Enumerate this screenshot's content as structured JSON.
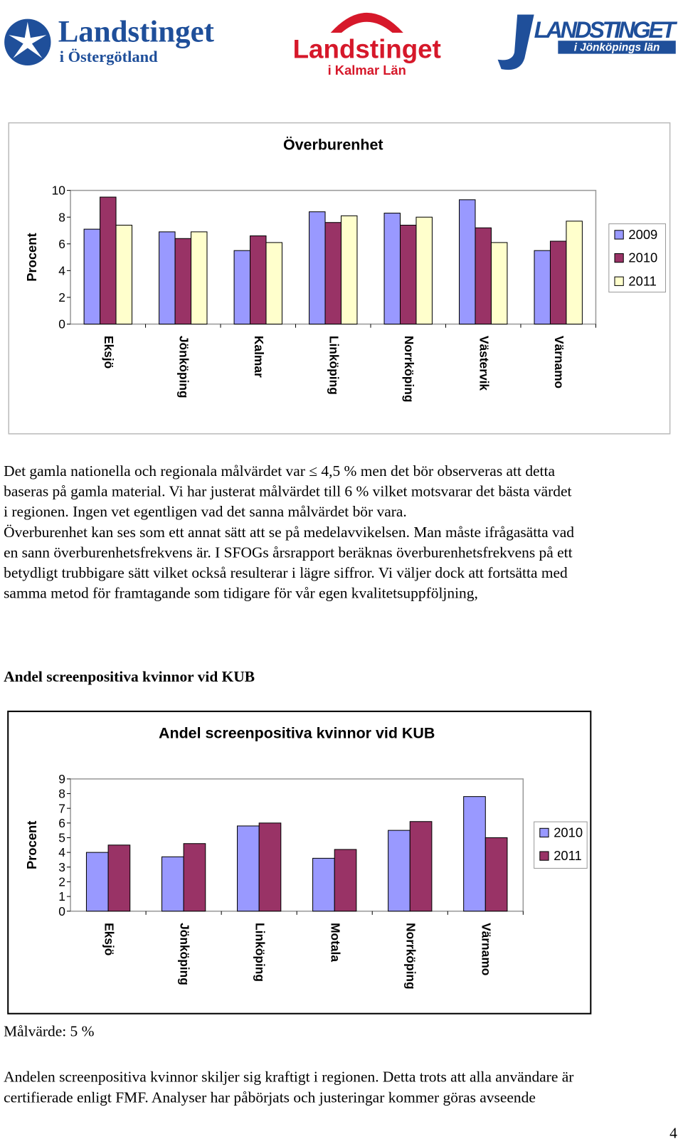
{
  "logos": [
    {
      "name": "Landstinget",
      "sub": "i Östergötland"
    },
    {
      "name": "Landstinget",
      "sub": "i Kalmar Län"
    },
    {
      "name": "LANDSTINGET",
      "sub": "i Jönköpings län"
    }
  ],
  "chart_data": [
    {
      "type": "bar",
      "title": "Överburenhet",
      "y_label": "Procent",
      "categories": [
        "Eksjö",
        "Jönköping",
        "Kalmar",
        "Linköping",
        "Norrköping",
        "Västervik",
        "Värnamo"
      ],
      "series": [
        {
          "name": "2009",
          "color": "#9999ff",
          "values": [
            7.1,
            6.9,
            5.5,
            8.4,
            8.3,
            9.3,
            5.5
          ]
        },
        {
          "name": "2010",
          "color": "#993366",
          "values": [
            9.5,
            6.4,
            6.6,
            7.6,
            7.4,
            7.2,
            6.2
          ]
        },
        {
          "name": "2011",
          "color": "#ffffcc",
          "values": [
            7.4,
            6.9,
            6.1,
            8.1,
            8.0,
            6.1,
            7.7
          ]
        }
      ],
      "ylim": [
        0,
        10
      ],
      "yticks": [
        0,
        2,
        4,
        6,
        8,
        10
      ],
      "grid": false,
      "legend": "right"
    },
    {
      "type": "bar",
      "title": "Andel screenpositiva kvinnor vid KUB",
      "y_label": "Procent",
      "categories": [
        "Eksjö",
        "Jönköping",
        "Linköping",
        "Motala",
        "Norrköping",
        "Värnamo"
      ],
      "series": [
        {
          "name": "2010",
          "color": "#9999ff",
          "values": [
            4.0,
            3.7,
            5.8,
            3.6,
            5.5,
            7.8
          ]
        },
        {
          "name": "2011",
          "color": "#993366",
          "values": [
            4.5,
            4.6,
            6.0,
            4.2,
            6.1,
            5.0
          ]
        }
      ],
      "ylim": [
        0,
        9
      ],
      "yticks": [
        0,
        1,
        2,
        3,
        4,
        5,
        6,
        7,
        8,
        9
      ],
      "grid": false,
      "legend": "right"
    }
  ],
  "paragraphs": [
    [
      "Det gamla nationella och regionala målvärdet var ≤ 4,5 % men det bör observeras att detta",
      "baseras på gamla material. Vi har justerat målvärdet till 6 % vilket motsvarar det bästa värdet",
      "i regionen. Ingen vet egentligen vad det sanna målvärdet bör vara.",
      "Överburenhet kan ses som ett annat sätt att se på medelavvikelsen. Man måste ifrågasätta vad",
      "en sann överburenhetsfrekvens är.  I SFOGs årsrapport beräknas överburenhetsfrekvens på ett",
      "betydligt trubbigare sätt vilket också resulterar i lägre siffror. Vi väljer dock att fortsätta med",
      "samma metod för framtagande som tidigare för vår egen kvalitetsuppföljning,"
    ],
    [
      "Andelen screenpositiva kvinnor skiljer sig kraftigt i regionen. Detta trots att alla användare är",
      "certifierade enligt FMF. Analyser har påbörjats och justeringar kommer göras avseende"
    ]
  ],
  "heading": "Andel screenpositiva kvinnor vid KUB",
  "target": "Målvärde: 5 %",
  "page_number": "4"
}
